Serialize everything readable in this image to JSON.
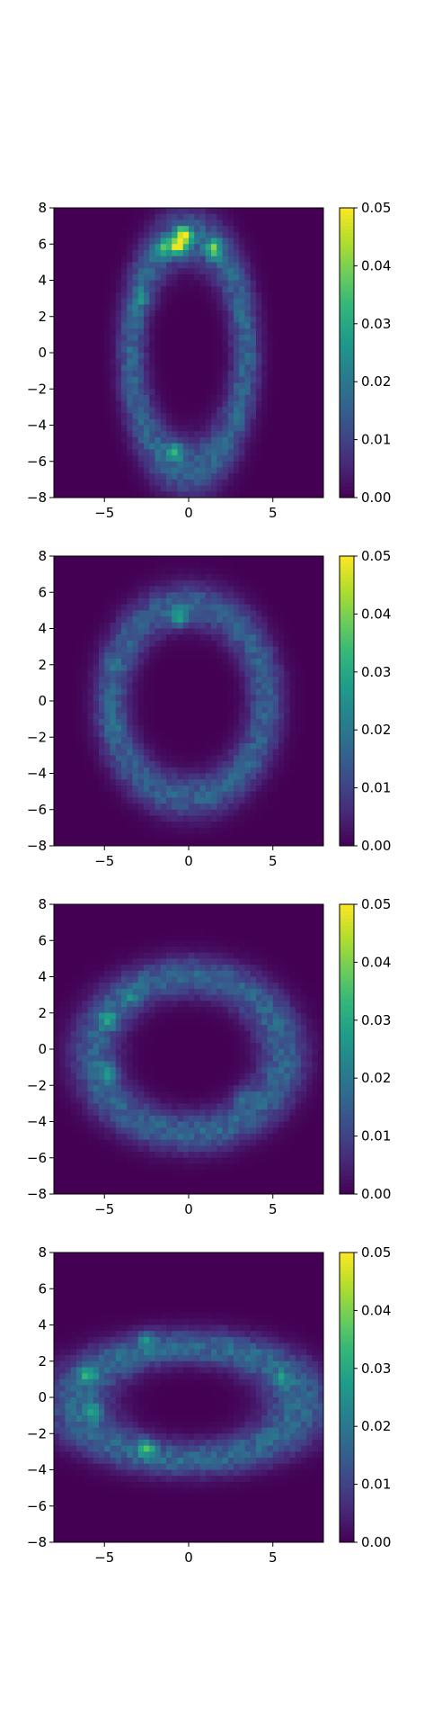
{
  "figure": {
    "colormap": "viridis",
    "colormap_stops": [
      "#440154",
      "#482878",
      "#3e4989",
      "#31688e",
      "#26828e",
      "#1f9e89",
      "#35b779",
      "#6ece58",
      "#b5de2b",
      "#fde725"
    ],
    "background_color": "#440154",
    "grid_bins": 48
  },
  "chart_data": [
    {
      "type": "heatmap",
      "description_shape": "vertical ellipse ring",
      "xlim": [
        -8,
        8
      ],
      "ylim": [
        -8,
        8
      ],
      "xticks": [
        "-5",
        "0",
        "5"
      ],
      "yticks": [
        "8",
        "6",
        "4",
        "2",
        "0",
        "−2",
        "−4",
        "−6",
        "−8"
      ],
      "ring": {
        "cx": 0,
        "cy": 0,
        "rx": 3.4,
        "ry": 6.4,
        "width": 0.95,
        "base": 0.016
      },
      "hotspots": [
        {
          "x": -0.3,
          "y": 6.5,
          "v": 0.05
        },
        {
          "x": -0.6,
          "y": 5.8,
          "v": 0.046
        },
        {
          "x": 1.5,
          "y": 5.7,
          "v": 0.04
        },
        {
          "x": -1.5,
          "y": 5.8,
          "v": 0.032
        },
        {
          "x": -0.8,
          "y": -5.4,
          "v": 0.036
        },
        {
          "x": -2.8,
          "y": 3.0,
          "v": 0.026
        }
      ],
      "colorbar": {
        "min": 0.0,
        "max": 0.05,
        "ticks": [
          "0.05",
          "0.04",
          "0.03",
          "0.02",
          "0.01",
          "0.00"
        ]
      }
    },
    {
      "type": "heatmap",
      "description_shape": "rounded ellipse ring",
      "xlim": [
        -8,
        8
      ],
      "ylim": [
        -8,
        8
      ],
      "xticks": [
        "-5",
        "0",
        "5"
      ],
      "yticks": [
        "8",
        "6",
        "4",
        "2",
        "0",
        "−2",
        "−4",
        "−6",
        "−8"
      ],
      "ring": {
        "cx": 0,
        "cy": 0,
        "rx": 4.6,
        "ry": 5.3,
        "width": 1.2,
        "base": 0.015
      },
      "hotspots": [
        {
          "x": -0.6,
          "y": 4.6,
          "v": 0.035
        },
        {
          "x": -4.5,
          "y": -1.3,
          "v": 0.022
        },
        {
          "x": -4.6,
          "y": 2.0,
          "v": 0.022
        }
      ],
      "colorbar": {
        "min": 0.0,
        "max": 0.05,
        "ticks": [
          "0.05",
          "0.04",
          "0.03",
          "0.02",
          "0.01",
          "0.00"
        ]
      }
    },
    {
      "type": "heatmap",
      "description_shape": "wide ellipse ring",
      "xlim": [
        -8,
        8
      ],
      "ylim": [
        -8,
        8
      ],
      "xticks": [
        "-5",
        "0",
        "5"
      ],
      "yticks": [
        "8",
        "6",
        "4",
        "2",
        "0",
        "−2",
        "−4",
        "−6",
        "−8"
      ],
      "ring": {
        "cx": 0,
        "cy": -0.3,
        "rx": 5.6,
        "ry": 4.3,
        "width": 1.25,
        "base": 0.016
      },
      "hotspots": [
        {
          "x": -4.8,
          "y": 1.6,
          "v": 0.032
        },
        {
          "x": -4.8,
          "y": -1.3,
          "v": 0.03
        },
        {
          "x": 3.2,
          "y": -2.6,
          "v": 0.026
        },
        {
          "x": -3.5,
          "y": 2.9,
          "v": 0.024
        }
      ],
      "colorbar": {
        "min": 0.0,
        "max": 0.05,
        "ticks": [
          "0.05",
          "0.04",
          "0.03",
          "0.02",
          "0.01",
          "0.00"
        ]
      }
    },
    {
      "type": "heatmap",
      "description_shape": "flat horizontal ellipse ring",
      "xlim": [
        -8,
        8
      ],
      "ylim": [
        -8,
        8
      ],
      "xticks": [
        "-5",
        "0",
        "5"
      ],
      "yticks": [
        "8",
        "6",
        "4",
        "2",
        "0",
        "−2",
        "−4",
        "−6",
        "−8"
      ],
      "ring": {
        "cx": 0,
        "cy": -0.3,
        "rx": 6.6,
        "ry": 3.1,
        "width": 1.1,
        "base": 0.017
      },
      "hotspots": [
        {
          "x": -6.0,
          "y": 1.2,
          "v": 0.034
        },
        {
          "x": -5.7,
          "y": -0.8,
          "v": 0.034
        },
        {
          "x": -2.5,
          "y": -2.8,
          "v": 0.036
        },
        {
          "x": -2.5,
          "y": 3.2,
          "v": 0.03
        },
        {
          "x": 5.5,
          "y": 1.0,
          "v": 0.028
        }
      ],
      "colorbar": {
        "min": 0.0,
        "max": 0.05,
        "ticks": [
          "0.05",
          "0.04",
          "0.03",
          "0.02",
          "0.01",
          "0.00"
        ]
      }
    }
  ]
}
